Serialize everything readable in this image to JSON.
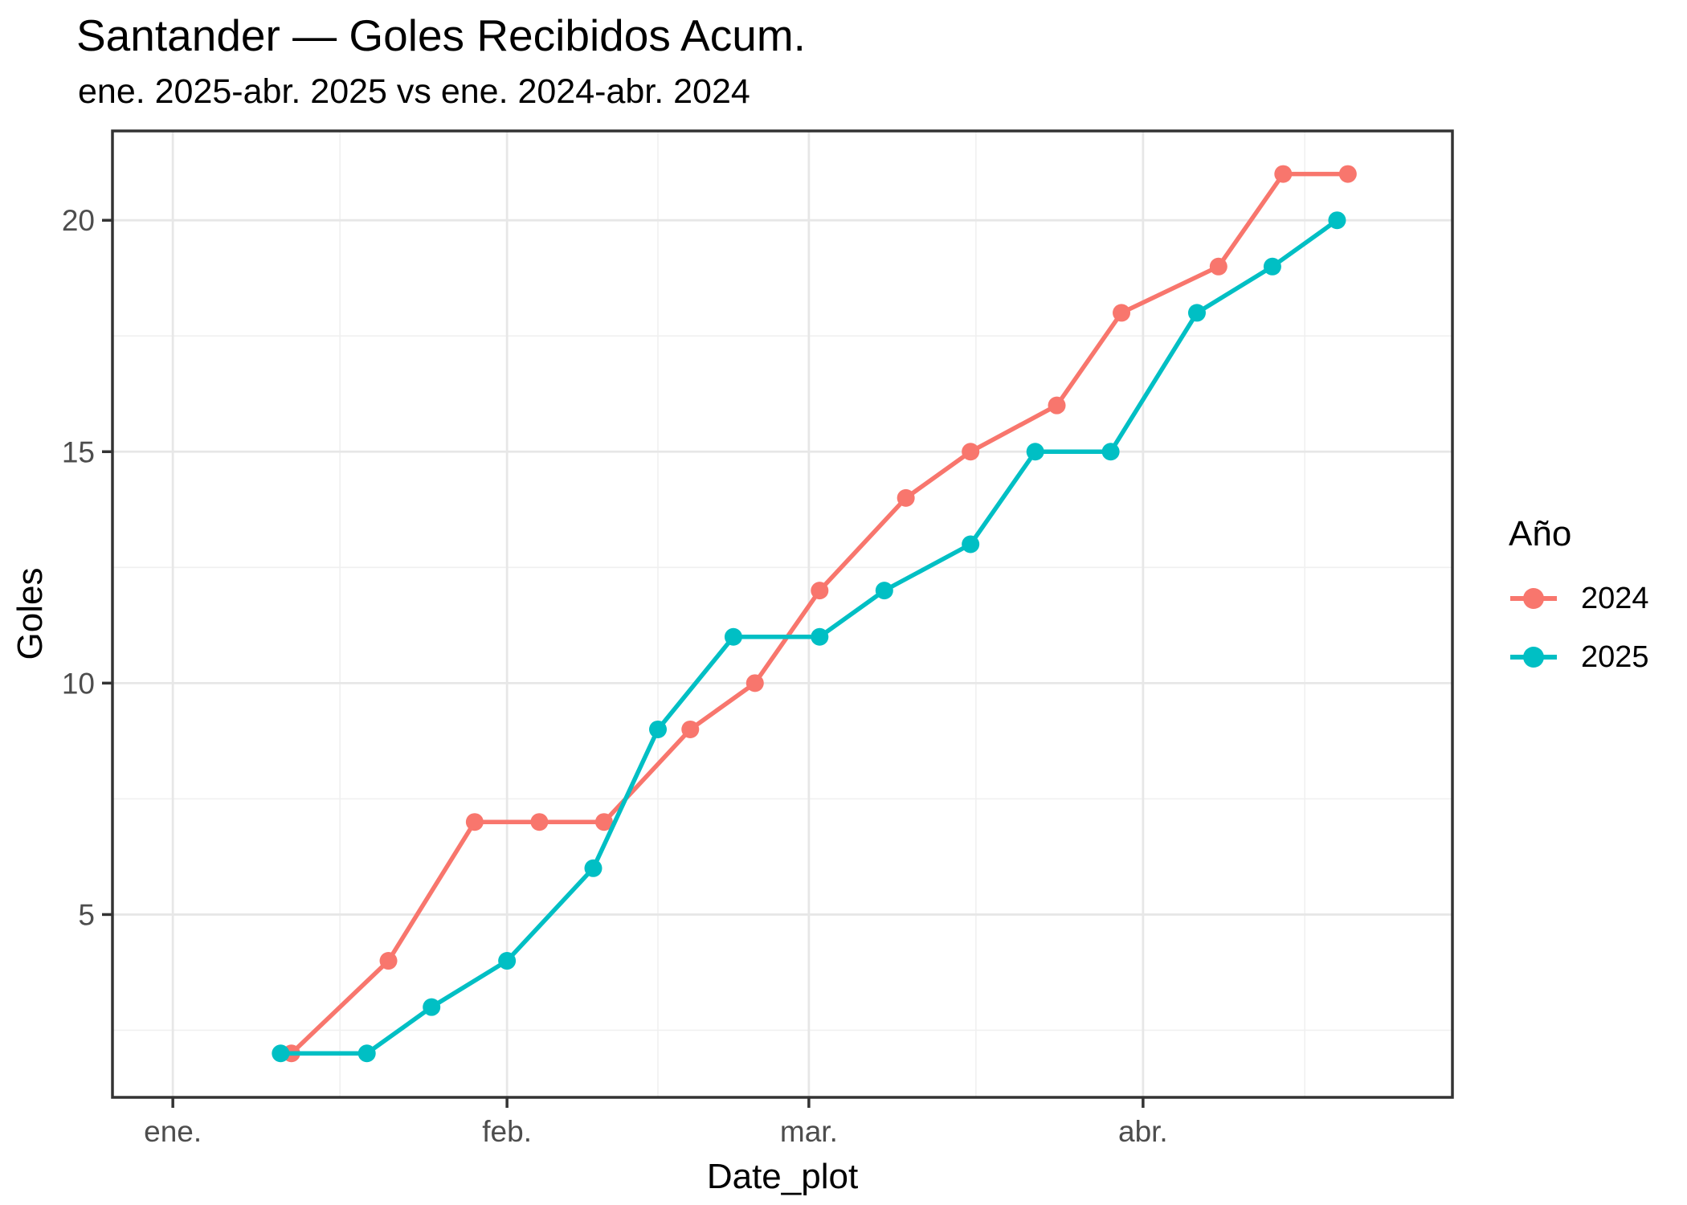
{
  "chart_data": {
    "type": "line",
    "title": "Santander — Goles Recibidos Acum.",
    "subtitle": "ene. 2025-abr. 2025 vs ene. 2024-abr. 2024",
    "xlabel": "Date_plot",
    "ylabel": "Goles",
    "legend_title": "Año",
    "legend_position": "right",
    "grid": "on",
    "x_tick_labels": [
      "ene.",
      "feb.",
      "mar.",
      "abr."
    ],
    "x_tick_days": [
      0,
      31,
      59,
      90
    ],
    "x_minor_days": [
      15.5,
      45,
      74.5,
      105
    ],
    "y_ticks": [
      5,
      10,
      15,
      20
    ],
    "y_minor_ticks": [
      2.5,
      7.5,
      12.5,
      17.5
    ],
    "axes": {
      "x_domain_days": [
        -5.6,
        118.7
      ],
      "y_domain": [
        1.05,
        21.93
      ]
    },
    "colors": {
      "grid_major": "#E7E7E7",
      "grid_minor": "#F0F0F0",
      "panel_border": "#333333",
      "tick_mark": "#333333",
      "tick_label": "#4D4D4D",
      "background": "#FFFFFF"
    },
    "series": [
      {
        "name": "2024",
        "color": "#F8766D",
        "points": [
          {
            "date": "01-12",
            "value": 2
          },
          {
            "date": "01-21",
            "value": 4
          },
          {
            "date": "01-29",
            "value": 7
          },
          {
            "date": "02-04",
            "value": 7
          },
          {
            "date": "02-10",
            "value": 7
          },
          {
            "date": "02-18",
            "value": 9
          },
          {
            "date": "02-24",
            "value": 10
          },
          {
            "date": "03-02",
            "value": 12
          },
          {
            "date": "03-10",
            "value": 14
          },
          {
            "date": "03-16",
            "value": 15
          },
          {
            "date": "03-24",
            "value": 16
          },
          {
            "date": "03-30",
            "value": 18
          },
          {
            "date": "04-08",
            "value": 19
          },
          {
            "date": "04-14",
            "value": 21
          },
          {
            "date": "04-20",
            "value": 21
          }
        ]
      },
      {
        "name": "2025",
        "color": "#00BFC4",
        "points": [
          {
            "date": "01-11",
            "value": 2
          },
          {
            "date": "01-19",
            "value": 2
          },
          {
            "date": "01-25",
            "value": 3
          },
          {
            "date": "02-01",
            "value": 4
          },
          {
            "date": "02-09",
            "value": 6
          },
          {
            "date": "02-15",
            "value": 9
          },
          {
            "date": "02-22",
            "value": 11
          },
          {
            "date": "03-02",
            "value": 11
          },
          {
            "date": "03-08",
            "value": 12
          },
          {
            "date": "03-16",
            "value": 13
          },
          {
            "date": "03-22",
            "value": 15
          },
          {
            "date": "03-29",
            "value": 15
          },
          {
            "date": "04-06",
            "value": 18
          },
          {
            "date": "04-13",
            "value": 19
          },
          {
            "date": "04-19",
            "value": 20
          }
        ]
      }
    ]
  }
}
